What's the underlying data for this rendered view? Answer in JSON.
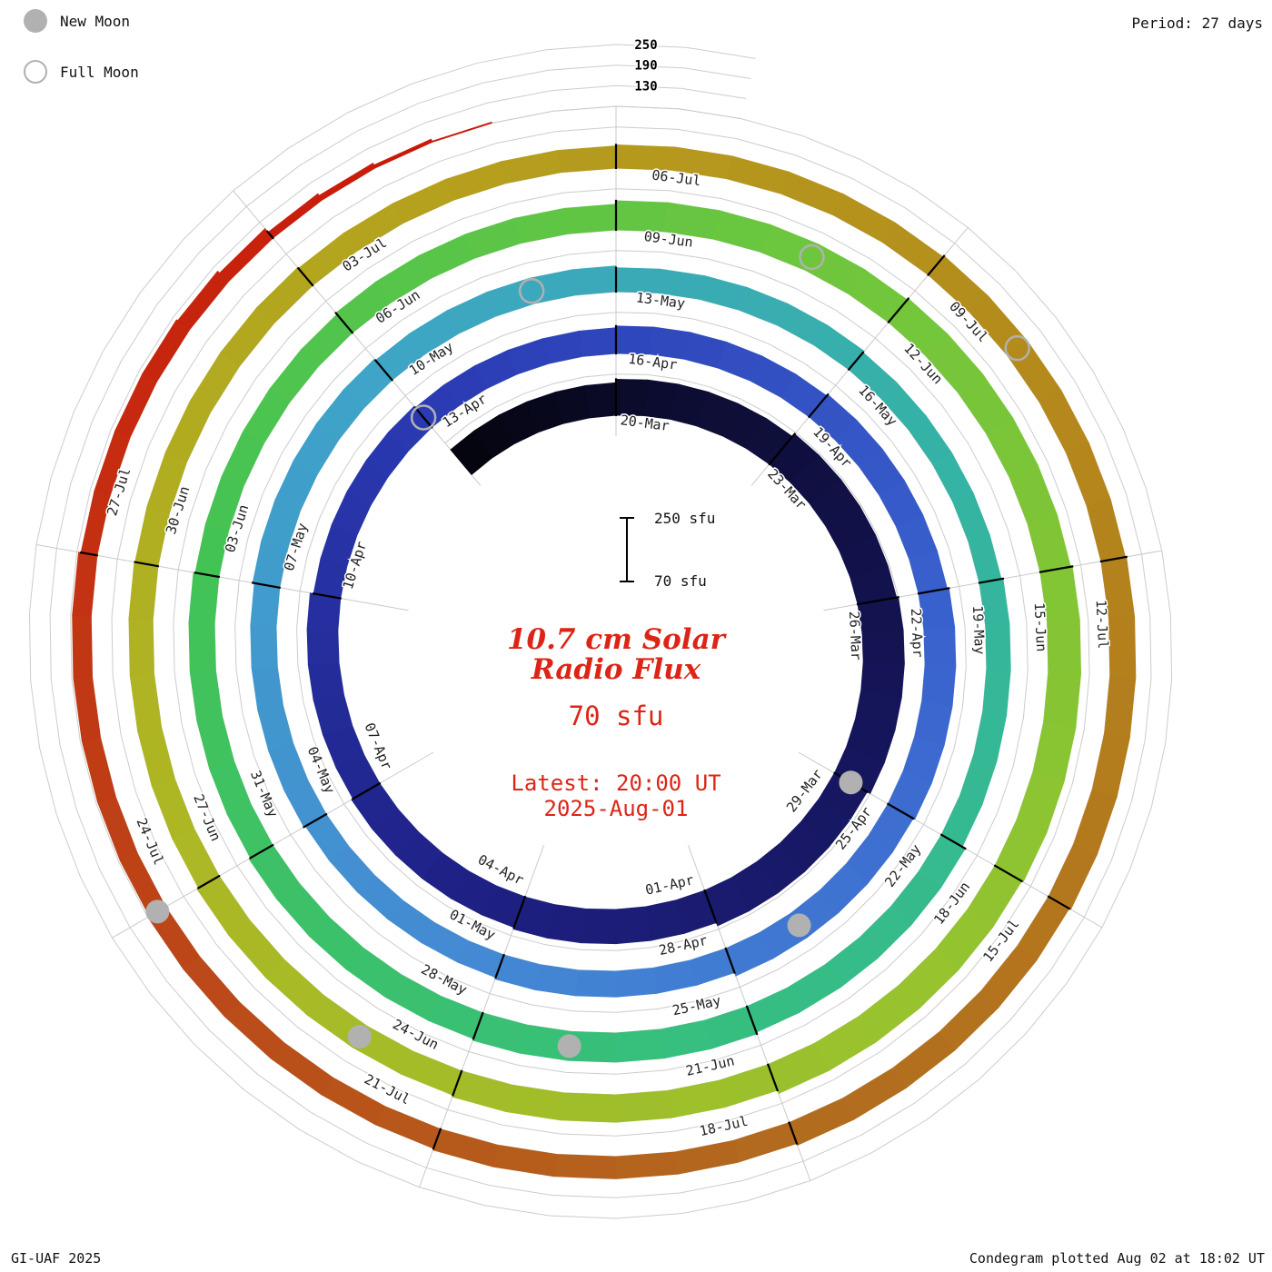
{
  "legend": {
    "new_moon": "New Moon",
    "full_moon": "Full Moon"
  },
  "header": {
    "period": "Period: 27 days"
  },
  "footer": {
    "left": "GI-UAF 2025",
    "right": "Condegram plotted Aug 02 at 18:02 UT"
  },
  "center": {
    "title_line1": "10.7 cm Solar",
    "title_line2": "Radio Flux",
    "current_flux": "70 sfu",
    "latest_line1": "Latest: 20:00 UT",
    "latest_line2": "2025-Aug-01",
    "scale_top": "250 sfu",
    "scale_bottom": "70 sfu"
  },
  "chart_data": {
    "type": "spiral",
    "variant": "condegram",
    "title": "10.7 cm Solar Radio Flux",
    "units": "sfu",
    "period_days": 27,
    "start_date": "2025-03-17",
    "first_labeled_date": "2025-03-20",
    "end_date": "2025-08-01",
    "latest_reading": {
      "value_sfu": 70,
      "time": "20:00 UT",
      "date": "2025-Aug-01"
    },
    "radial_axis": {
      "baseline_sfu": 70,
      "gridlines_sfu": [
        130,
        190,
        250
      ],
      "tick_labels": [
        "250",
        "190",
        "130"
      ]
    },
    "tick_interval_days": 3,
    "date_labels": [
      "20-Mar",
      "23-Mar",
      "26-Mar",
      "29-Mar",
      "01-Apr",
      "04-Apr",
      "07-Apr",
      "10-Apr",
      "13-Apr",
      "16-Apr",
      "19-Apr",
      "22-Apr",
      "25-Apr",
      "28-Apr",
      "01-May",
      "04-May",
      "07-May",
      "10-May",
      "13-May",
      "16-May",
      "19-May",
      "22-May",
      "25-May",
      "28-May",
      "31-May",
      "03-Jun",
      "06-Jun",
      "09-Jun",
      "12-Jun",
      "15-Jun",
      "18-Jun",
      "21-Jun",
      "24-Jun",
      "27-Jun",
      "30-Jun",
      "03-Jul",
      "06-Jul",
      "09-Jul",
      "12-Jul",
      "15-Jul",
      "18-Jul",
      "21-Jul",
      "24-Jul",
      "27-Jul"
    ],
    "flux_sfu_per_3day": [
      165,
      175,
      185,
      190,
      180,
      170,
      165,
      160,
      150,
      145,
      150,
      155,
      160,
      155,
      145,
      140,
      145,
      150,
      145,
      140,
      135,
      140,
      150,
      155,
      150,
      145,
      140,
      145,
      155,
      160,
      165,
      160,
      150,
      145,
      140,
      138,
      135,
      138,
      142,
      145,
      140,
      135,
      130,
      125,
      118,
      108
    ],
    "latest_flux_sfu": 70,
    "color_stops": [
      [
        0.0,
        "#05050d"
      ],
      [
        0.03,
        "#0d0d33"
      ],
      [
        0.08,
        "#15155a"
      ],
      [
        0.14,
        "#1f2186"
      ],
      [
        0.2,
        "#2b3bb4"
      ],
      [
        0.27,
        "#3a64cf"
      ],
      [
        0.33,
        "#4489d4"
      ],
      [
        0.39,
        "#3fa3c8"
      ],
      [
        0.45,
        "#35b3a4"
      ],
      [
        0.51,
        "#36bf7e"
      ],
      [
        0.57,
        "#43c355"
      ],
      [
        0.63,
        "#6fc63c"
      ],
      [
        0.69,
        "#97c32e"
      ],
      [
        0.75,
        "#adb724"
      ],
      [
        0.8,
        "#b5a01d"
      ],
      [
        0.85,
        "#b4851c"
      ],
      [
        0.9,
        "#b26a1e"
      ],
      [
        0.94,
        "#bc4618"
      ],
      [
        0.97,
        "#c52b10"
      ],
      [
        1.0,
        "#cb1507"
      ]
    ],
    "new_moon_day_offsets": [
      9,
      38,
      68,
      97,
      126
    ],
    "new_moon_dates": [
      "29-Mar",
      "27-Apr",
      "27-May",
      "25-Jun",
      "24-Jul"
    ],
    "full_moon_day_offsets": [
      24,
      53,
      83,
      112
    ],
    "full_moon_dates": [
      "13-Apr",
      "12-May",
      "11-Jun",
      "10-Jul"
    ],
    "marker_colors": {
      "moon_gray": "#b1b1b1"
    },
    "accent_color": "#dc2516"
  }
}
